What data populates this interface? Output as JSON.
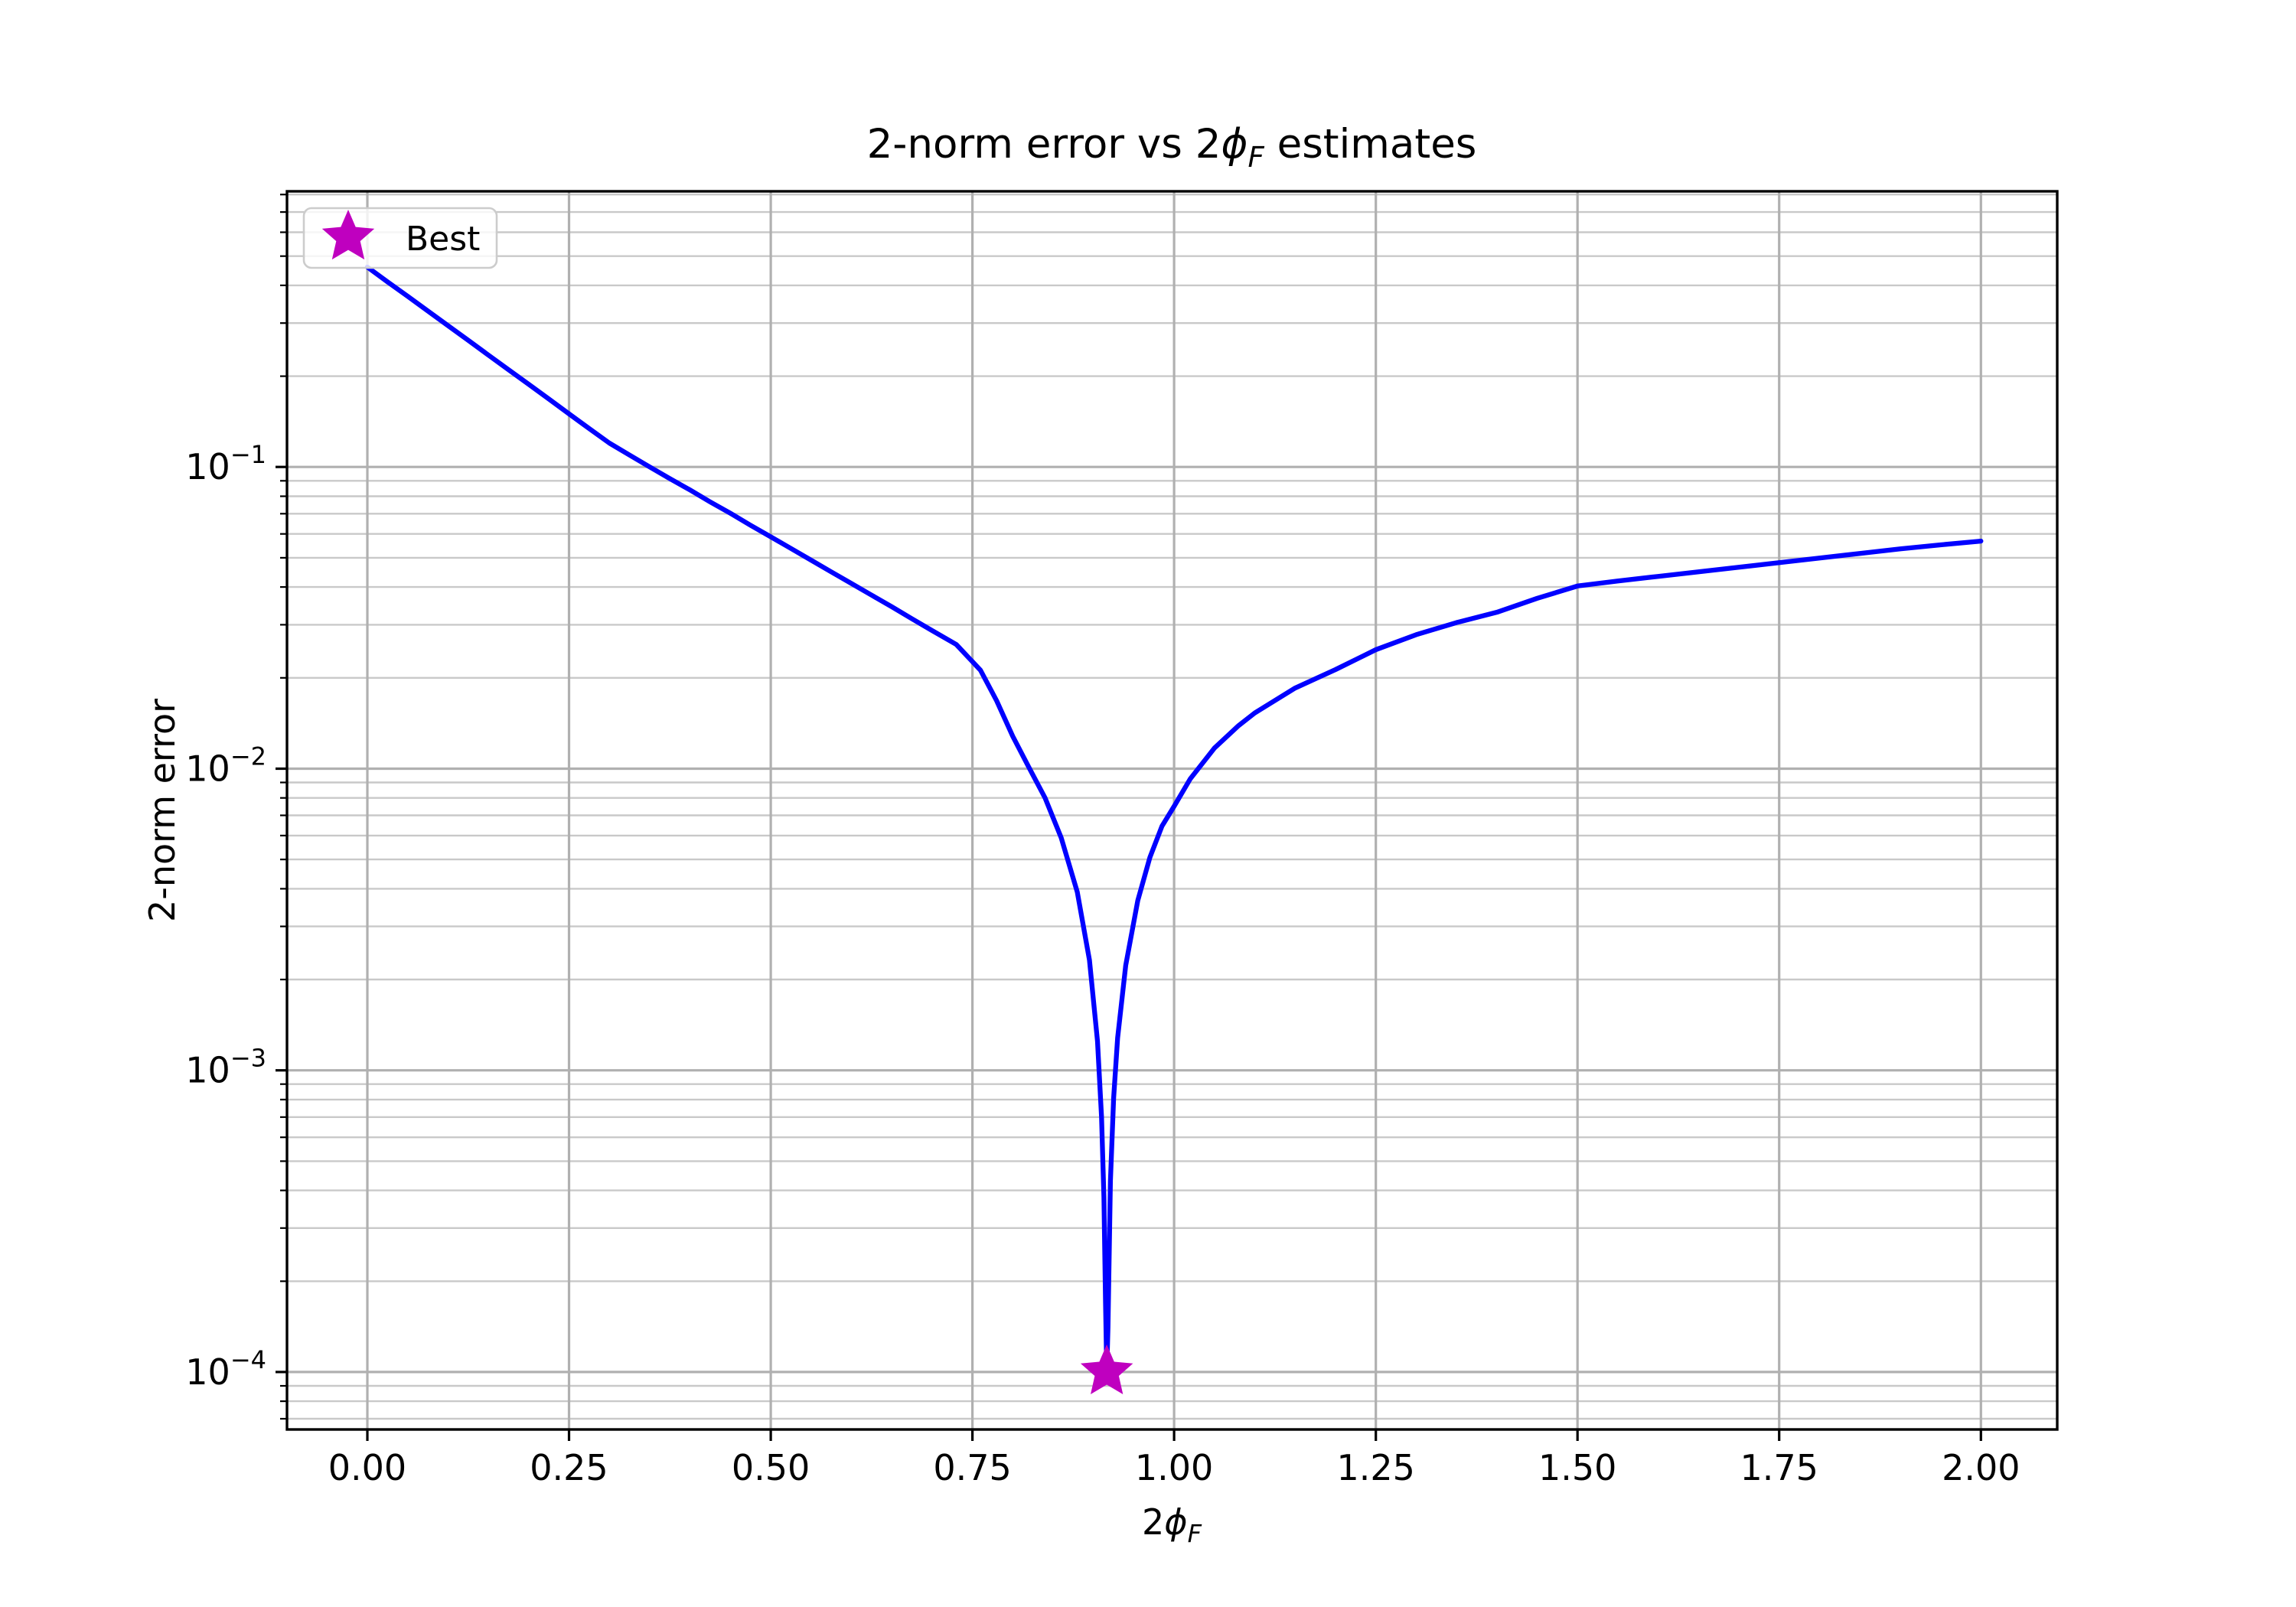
{
  "page": {
    "background": "#ffffff"
  },
  "chart_data": {
    "type": "line",
    "title": "2-norm error vs 2ϕF estimates",
    "title_parts": {
      "prefix": "2-norm error vs 2",
      "phi": "ϕ",
      "phi_sub": "F",
      "suffix": " estimates"
    },
    "xlabel": "2ϕF",
    "xlabel_parts": {
      "prefix": "2",
      "phi": "ϕ",
      "phi_sub": "F"
    },
    "ylabel": "2-norm error",
    "x_scale": "linear",
    "y_scale": "log",
    "xlim": [
      -0.0996,
      2.0946
    ],
    "ylim": [
      6.45e-05,
      0.82
    ],
    "grid": {
      "major": true,
      "minor": true,
      "major_color": "#b0b0b0",
      "minor_color": "#c9c9c9"
    },
    "x_ticks": {
      "values": [
        0,
        0.25,
        0.5,
        0.75,
        1.0,
        1.25,
        1.5,
        1.75,
        2.0
      ],
      "labels": [
        "0.00",
        "0.25",
        "0.50",
        "0.75",
        "1.00",
        "1.25",
        "1.50",
        "1.75",
        "2.00"
      ]
    },
    "y_ticks": {
      "base": 10,
      "major_exponents": [
        -1,
        -2,
        -3,
        -4
      ],
      "minor_values": [
        0.8,
        0.7,
        0.6,
        0.5,
        0.4,
        0.3,
        0.2,
        0.09,
        0.08,
        0.07,
        0.06,
        0.05,
        0.04,
        0.03,
        0.02,
        0.009,
        0.008,
        0.007,
        0.006,
        0.005,
        0.004,
        0.003,
        0.002,
        0.0009,
        0.0008,
        0.0007,
        0.0006,
        0.0005,
        0.0004,
        0.0003,
        0.0002,
        9e-05,
        8e-05,
        7e-05
      ]
    },
    "series": [
      {
        "name": "2-norm error curve",
        "color": "#0000ff",
        "points": [
          [
            0.0,
            0.46
          ],
          [
            0.025,
            0.411
          ],
          [
            0.05,
            0.368
          ],
          [
            0.075,
            0.329
          ],
          [
            0.1,
            0.294
          ],
          [
            0.125,
            0.263
          ],
          [
            0.15,
            0.235
          ],
          [
            0.175,
            0.21
          ],
          [
            0.2,
            0.188
          ],
          [
            0.225,
            0.168
          ],
          [
            0.25,
            0.15
          ],
          [
            0.275,
            0.134
          ],
          [
            0.3,
            0.12
          ],
          [
            0.325,
            0.1095
          ],
          [
            0.35,
            0.1
          ],
          [
            0.375,
            0.0915
          ],
          [
            0.4,
            0.0839
          ],
          [
            0.425,
            0.0766
          ],
          [
            0.45,
            0.0702
          ],
          [
            0.475,
            0.0641
          ],
          [
            0.5,
            0.0587
          ],
          [
            0.525,
            0.0537
          ],
          [
            0.55,
            0.0491
          ],
          [
            0.575,
            0.0449
          ],
          [
            0.6,
            0.0411
          ],
          [
            0.625,
            0.0376
          ],
          [
            0.65,
            0.0344
          ],
          [
            0.675,
            0.0314
          ],
          [
            0.7,
            0.0287
          ],
          [
            0.73,
            0.0258
          ],
          [
            0.76,
            0.0212
          ],
          [
            0.78,
            0.0168
          ],
          [
            0.8,
            0.0128
          ],
          [
            0.82,
            0.0101
          ],
          [
            0.84,
            0.008
          ],
          [
            0.86,
            0.0059
          ],
          [
            0.88,
            0.0039
          ],
          [
            0.895,
            0.00232
          ],
          [
            0.905,
            0.00125
          ],
          [
            0.91,
            0.0007
          ],
          [
            0.913,
            0.00038
          ],
          [
            0.915,
            0.00017
          ],
          [
            0.9165,
            0.0001
          ],
          [
            0.918,
            0.00014
          ],
          [
            0.921,
            0.00043
          ],
          [
            0.925,
            0.00081
          ],
          [
            0.93,
            0.00128
          ],
          [
            0.94,
            0.00223
          ],
          [
            0.955,
            0.00366
          ],
          [
            0.97,
            0.00508
          ],
          [
            0.985,
            0.00645
          ],
          [
            1.0,
            0.0075
          ],
          [
            1.02,
            0.00925
          ],
          [
            1.05,
            0.0117
          ],
          [
            1.08,
            0.0139
          ],
          [
            1.1,
            0.0153
          ],
          [
            1.15,
            0.0185
          ],
          [
            1.2,
            0.0213
          ],
          [
            1.25,
            0.0248
          ],
          [
            1.3,
            0.0278
          ],
          [
            1.35,
            0.0305
          ],
          [
            1.4,
            0.033
          ],
          [
            1.45,
            0.0367
          ],
          [
            1.5,
            0.0403
          ],
          [
            1.55,
            0.0419
          ],
          [
            1.6,
            0.0434
          ],
          [
            1.65,
            0.0449
          ],
          [
            1.7,
            0.0465
          ],
          [
            1.75,
            0.0482
          ],
          [
            1.8,
            0.0499
          ],
          [
            1.85,
            0.0517
          ],
          [
            1.9,
            0.0535
          ],
          [
            1.95,
            0.0552
          ],
          [
            2.0,
            0.0568
          ]
        ]
      }
    ],
    "best_point": {
      "x": 0.9165,
      "y": 0.0001,
      "marker": "star",
      "color": "#bf00bf"
    },
    "legend": {
      "location": "upper left",
      "entries": [
        {
          "label": "Best",
          "marker": "star",
          "color": "#bf00bf"
        }
      ]
    }
  }
}
